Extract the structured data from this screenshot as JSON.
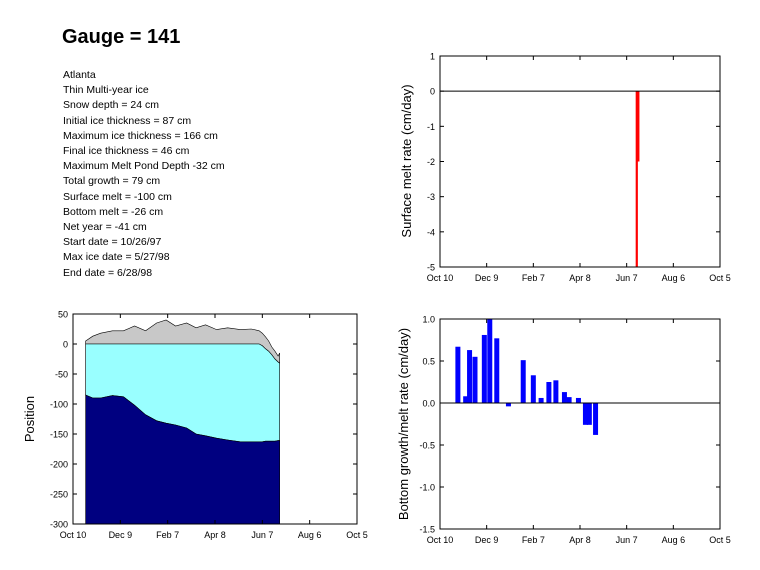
{
  "title": "Gauge = 141",
  "info_lines": [
    "Atlanta",
    "Thin Multi-year ice",
    "Snow depth = 24 cm",
    "Initial ice thickness =  87 cm",
    "Maximum ice thickness = 166 cm",
    "Final ice thickness =  46 cm",
    "Maximum Melt Pond Depth -32 cm",
    "Total growth =  79 cm",
    "Surface melt = -100 cm",
    "Bottom melt =  -26 cm",
    "Net year =      -41  cm",
    "Start date =  10/26/97",
    "Max ice date = 5/27/98",
    "End date = 6/28/98"
  ],
  "colors": {
    "snow": "#c8c8c8",
    "ice_upper": "#99ffff",
    "ice_lower": "#000080",
    "surface_melt": "#ff0000",
    "bottom": "#0000ff"
  },
  "chart_data": [
    {
      "id": "position",
      "type": "area",
      "ylabel": "Position",
      "xlabel": "",
      "x_tick_labels": [
        "Oct 10",
        "Dec 9",
        "Feb 7",
        "Apr 8",
        "Jun 7",
        "Aug 6",
        "Oct 5"
      ],
      "x_tick_days": [
        0,
        60,
        120,
        180,
        240,
        300,
        360
      ],
      "ylim": [
        -300,
        50
      ],
      "y_ticks": [
        50,
        0,
        -50,
        -100,
        -150,
        -200,
        -250,
        -300
      ],
      "day": [
        16,
        25,
        35,
        50,
        64,
        78,
        92,
        106,
        118,
        130,
        144,
        156,
        168,
        182,
        196,
        212,
        226,
        236,
        240,
        244,
        248,
        252,
        256,
        260,
        262
      ],
      "snow_top": [
        5,
        13,
        18,
        22,
        22,
        30,
        22,
        35,
        40,
        30,
        35,
        27,
        32,
        24,
        27,
        24,
        25,
        22,
        18,
        12,
        5,
        -5,
        -12,
        -20,
        -15
      ],
      "ice_top": [
        0,
        0,
        0,
        0,
        0,
        0,
        0,
        0,
        0,
        0,
        0,
        0,
        0,
        0,
        0,
        0,
        0,
        0,
        -3,
        -8,
        -12,
        -18,
        -25,
        -30,
        -32
      ],
      "ice_divide": [
        -85,
        -90,
        -90,
        -86,
        -88,
        -102,
        -118,
        -128,
        -132,
        -135,
        -140,
        -150,
        -153,
        -157,
        -160,
        -163,
        -163,
        -163,
        -163,
        -162,
        -162,
        -162,
        -162,
        -161,
        -161
      ],
      "ice_bottom": [
        -300,
        -300,
        -300,
        -300,
        -300,
        -300,
        -300,
        -300,
        -300,
        -300,
        -300,
        -300,
        -300,
        -300,
        -300,
        -300,
        -300,
        -300,
        -300,
        -300,
        -300,
        -300,
        -300,
        -300,
        -300
      ]
    },
    {
      "id": "surface-melt",
      "type": "bar",
      "ylabel": "Surface melt rate (cm/day)",
      "xlabel": "",
      "x_tick_labels": [
        "Oct 10",
        "Dec 9",
        "Feb 7",
        "Apr 8",
        "Jun 7",
        "Aug 6",
        "Oct 5"
      ],
      "x_tick_days": [
        0,
        60,
        120,
        180,
        240,
        300,
        360
      ],
      "ylim": [
        -5,
        1
      ],
      "y_ticks": [
        1,
        0,
        -1,
        -2,
        -3,
        -4,
        -5
      ],
      "day": [
        253,
        255
      ],
      "values": [
        -5,
        -2
      ]
    },
    {
      "id": "bottom-growth",
      "type": "bar",
      "ylabel": "Bottom growth/melt rate (cm/day)",
      "xlabel": "",
      "x_tick_labels": [
        "Oct 10",
        "Dec 9",
        "Feb 7",
        "Apr 8",
        "Jun 7",
        "Aug 6",
        "Oct 5"
      ],
      "x_tick_days": [
        0,
        60,
        120,
        180,
        240,
        300,
        360
      ],
      "ylim": [
        -1.5,
        1.0
      ],
      "y_ticks": [
        1.0,
        0.5,
        0.0,
        -0.5,
        -1.0,
        -1.5
      ],
      "y_tick_labels": [
        "1.0",
        "0.5",
        "0.0",
        "-0.5",
        "-1.0",
        "-1.5"
      ],
      "day": [
        23,
        33,
        38,
        45,
        57,
        64,
        73,
        88,
        107,
        120,
        130,
        140,
        149,
        160,
        166,
        178,
        187,
        192,
        200,
        206,
        211,
        216,
        221,
        225
      ],
      "values": [
        0.67,
        0.08,
        0.63,
        0.55,
        0.81,
        1.0,
        0.77,
        -0.04,
        0.51,
        0.33,
        0.06,
        0.25,
        0.27,
        0.13,
        0.07,
        0.06,
        -0.26,
        -0.26,
        -0.38,
        0,
        0,
        0,
        0,
        0
      ]
    }
  ]
}
